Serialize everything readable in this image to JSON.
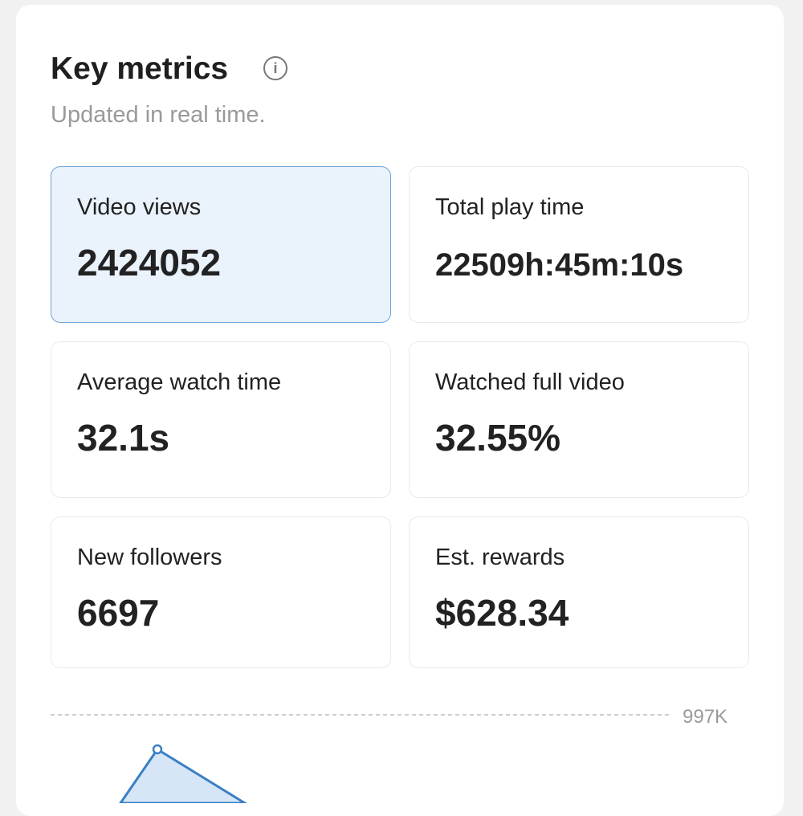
{
  "header": {
    "title": "Key metrics",
    "subtitle": "Updated in real time."
  },
  "metrics": [
    {
      "label": "Video views",
      "value": "2424052"
    },
    {
      "label": "Total play time",
      "value": "22509h:45m:10s"
    },
    {
      "label": "Average watch time",
      "value": "32.1s"
    },
    {
      "label": "Watched full video",
      "value": "32.55%"
    },
    {
      "label": "New followers",
      "value": "6697"
    },
    {
      "label": "Est. rewards",
      "value": "$628.34"
    }
  ],
  "chart": {
    "ytick_label": "997K"
  }
}
